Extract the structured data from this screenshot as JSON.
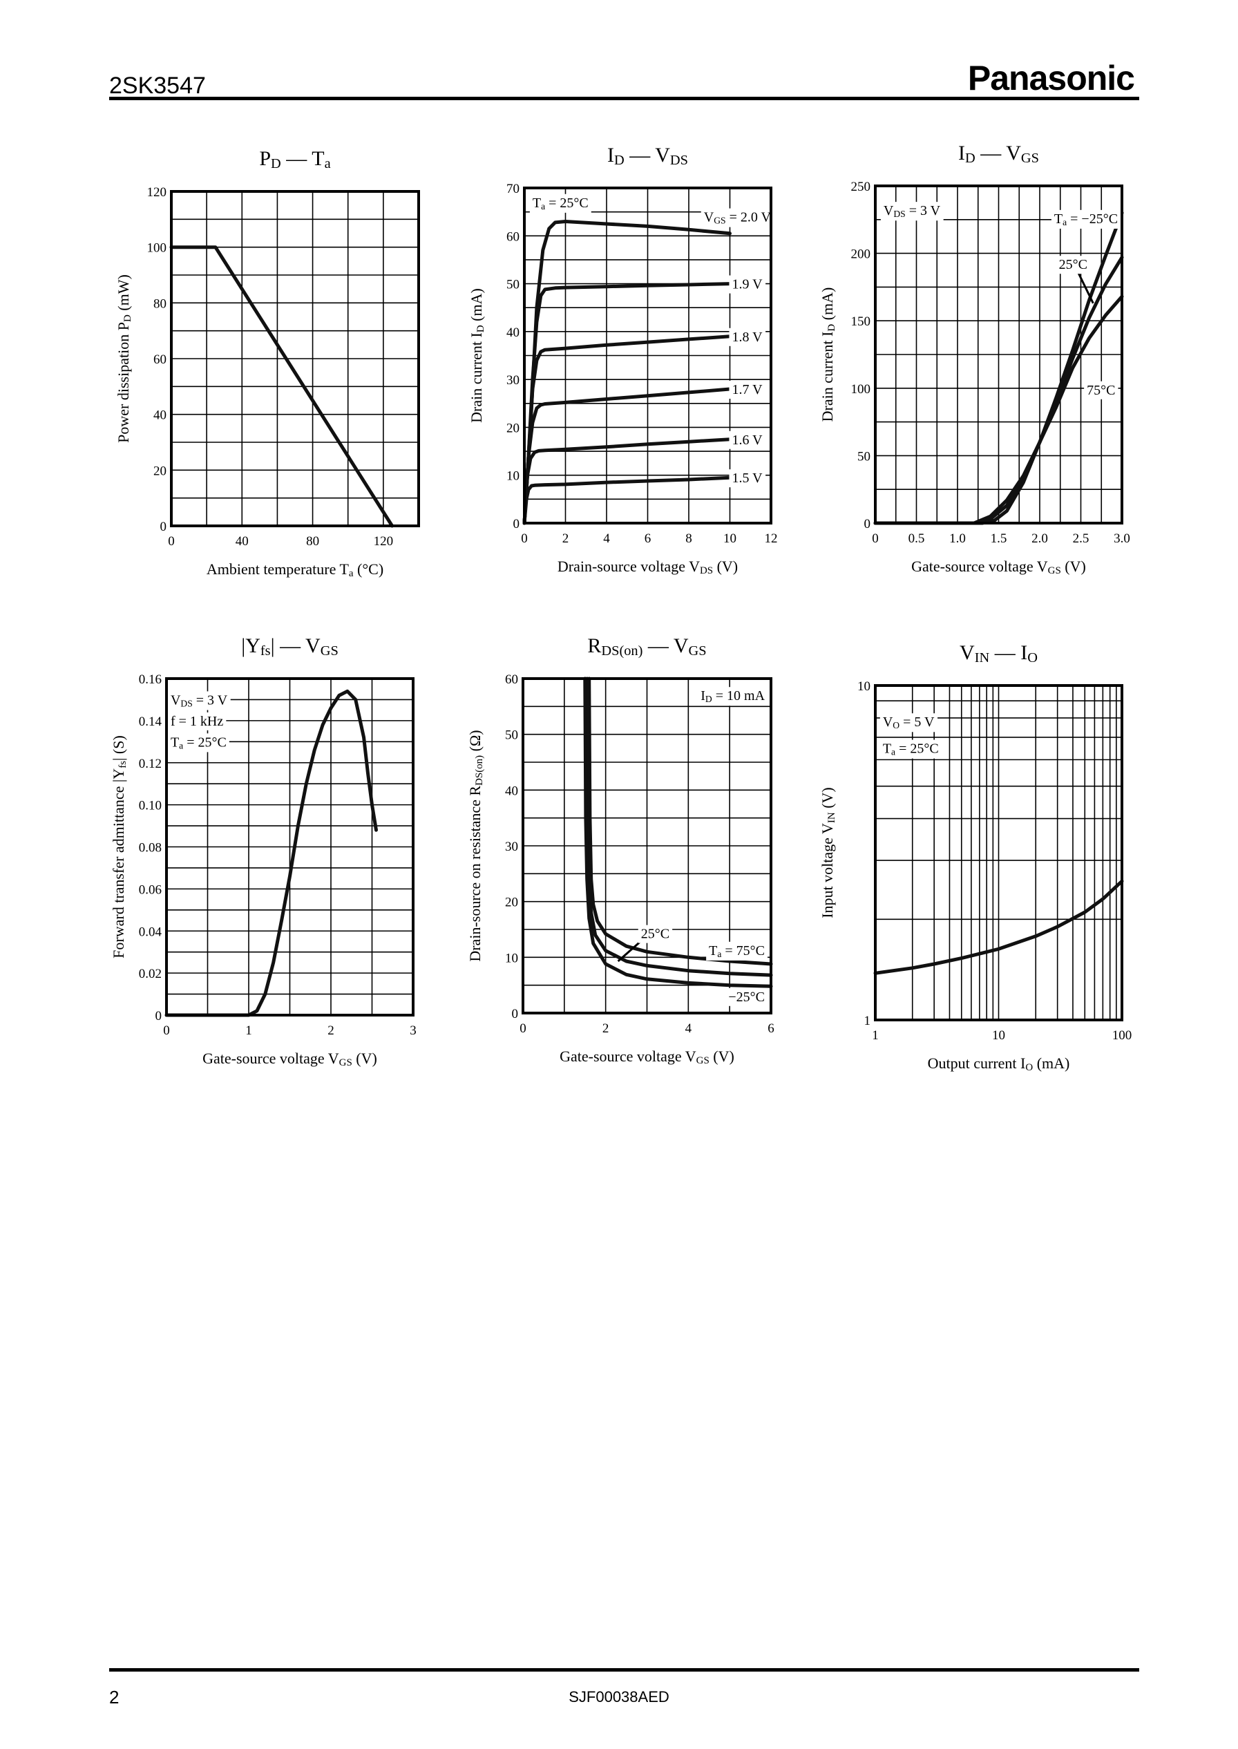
{
  "header": {
    "part_number": "2SK3547",
    "brand": "Panasonic"
  },
  "footer": {
    "page_number": "2",
    "doc_code": "SJF00038AED"
  },
  "chart_data": [
    {
      "type": "line",
      "title": [
        "P",
        "_D",
        " — T",
        "_a"
      ],
      "xlabel": [
        "Ambient temperature  T",
        "_a",
        "  (°C)"
      ],
      "ylabel": [
        "Power dissipation  P",
        "_D",
        "  (mW)"
      ],
      "xlim": [
        0,
        140
      ],
      "ylim": [
        0,
        120
      ],
      "x_scale": "linear",
      "y_scale": "linear",
      "x_grid_step": 20,
      "y_grid_step": 10,
      "grid": true,
      "x_ticks": [
        "0",
        "40",
        "80",
        "120"
      ],
      "y_ticks": [
        "0",
        "20",
        "40",
        "60",
        "80",
        "100",
        "120"
      ],
      "series": [
        {
          "x": [
            0,
            25,
            125
          ],
          "y": [
            100,
            100,
            0
          ]
        }
      ],
      "annotations": []
    },
    {
      "type": "line",
      "title": [
        "I",
        "_D",
        " — V",
        "_DS"
      ],
      "xlabel": [
        "Drain-source voltage  V",
        "_DS",
        "  (V)"
      ],
      "ylabel": [
        "Drain current  I",
        "_D",
        "  (mA)"
      ],
      "xlim": [
        0,
        12
      ],
      "ylim": [
        0,
        70
      ],
      "x_scale": "linear",
      "y_scale": "linear",
      "x_grid_step": 2,
      "y_grid_step": 5,
      "grid": true,
      "x_ticks": [
        "0",
        "2",
        "4",
        "6",
        "8",
        "10",
        "12"
      ],
      "y_ticks": [
        "0",
        "10",
        "20",
        "30",
        "40",
        "50",
        "60",
        "70"
      ],
      "series": [
        {
          "name": "V_GS = 2.0 V",
          "x": [
            0,
            0.3,
            0.6,
            0.9,
            1.2,
            1.5,
            2,
            4,
            6,
            8,
            10
          ],
          "y": [
            0,
            20,
            45,
            57,
            61.5,
            62.8,
            63,
            62.5,
            62,
            61.3,
            60.5
          ]
        },
        {
          "name": "1.9 V",
          "x": [
            0,
            0.2,
            0.4,
            0.6,
            0.8,
            1,
            1.5,
            2,
            4,
            6,
            8,
            10
          ],
          "y": [
            0,
            14,
            30,
            42,
            47.5,
            48.8,
            49.1,
            49.2,
            49.4,
            49.6,
            49.8,
            50
          ]
        },
        {
          "name": "1.8 V",
          "x": [
            0,
            0.2,
            0.4,
            0.6,
            0.8,
            1,
            2,
            4,
            6,
            8,
            10
          ],
          "y": [
            0,
            14,
            28,
            34,
            35.8,
            36.2,
            36.5,
            37.2,
            37.8,
            38.4,
            39
          ]
        },
        {
          "name": "1.7 V",
          "x": [
            0,
            0.2,
            0.4,
            0.6,
            0.8,
            1,
            2,
            4,
            6,
            8,
            10
          ],
          "y": [
            0,
            14,
            21,
            24,
            24.7,
            24.9,
            25.2,
            25.9,
            26.6,
            27.3,
            28
          ]
        },
        {
          "name": "1.6 V",
          "x": [
            0,
            0.15,
            0.3,
            0.5,
            0.7,
            1,
            2,
            4,
            6,
            8,
            10
          ],
          "y": [
            0,
            10,
            13.5,
            14.8,
            15.1,
            15.2,
            15.4,
            15.9,
            16.5,
            17,
            17.5
          ]
        },
        {
          "name": "1.5 V",
          "x": [
            0,
            0.1,
            0.2,
            0.35,
            0.5,
            1,
            2,
            4,
            6,
            8,
            10
          ],
          "y": [
            0,
            5,
            7,
            7.8,
            7.9,
            8,
            8.1,
            8.5,
            8.8,
            9.1,
            9.5
          ]
        }
      ],
      "annotations": [
        [
          "T",
          "_a",
          " = 25°C"
        ],
        [
          "V",
          "_GS",
          " = 2.0 V"
        ],
        [
          "1.9 V"
        ],
        [
          "1.8 V"
        ],
        [
          "1.7 V"
        ],
        [
          "1.6 V"
        ],
        [
          "1.5 V"
        ]
      ]
    },
    {
      "type": "line",
      "title": [
        "I",
        "_D",
        " — V",
        "_GS"
      ],
      "xlabel": [
        "Gate-source voltage  V",
        "_GS",
        "  (V)"
      ],
      "ylabel": [
        "Drain current  I",
        "_D",
        "  (mA)"
      ],
      "xlim": [
        0,
        3
      ],
      "ylim": [
        0,
        250
      ],
      "x_scale": "linear",
      "y_scale": "linear",
      "x_grid_step": 0.25,
      "y_grid_step": 25,
      "grid": true,
      "x_ticks": [
        "0",
        "0.5",
        "1.0",
        "1.5",
        "2.0",
        "2.5",
        "3.0"
      ],
      "y_ticks": [
        "0",
        "50",
        "100",
        "150",
        "200",
        "250"
      ],
      "series": [
        {
          "name": "T_a = −25°C",
          "x": [
            0,
            1.2,
            1.4,
            1.6,
            1.8,
            2.0,
            2.2,
            2.4,
            2.6,
            2.8,
            3.0
          ],
          "y": [
            0,
            0,
            5,
            17,
            35,
            60,
            93,
            128,
            165,
            198,
            230
          ]
        },
        {
          "name": "25°C",
          "x": [
            0,
            1.25,
            1.4,
            1.6,
            1.8,
            2.0,
            2.2,
            2.4,
            2.6,
            2.8,
            3.0
          ],
          "y": [
            0,
            0,
            3,
            13,
            33,
            60,
            90,
            122,
            152,
            177,
            197
          ]
        },
        {
          "name": "75°C",
          "x": [
            0,
            1.3,
            1.45,
            1.6,
            1.8,
            2.0,
            2.2,
            2.4,
            2.6,
            2.8,
            3.0
          ],
          "y": [
            0,
            0,
            2,
            9,
            30,
            60,
            86,
            115,
            137,
            154,
            168
          ]
        }
      ],
      "annotations": [
        [
          "V",
          "_DS",
          " = 3 V"
        ],
        [
          "T",
          "_a",
          " = −25°C"
        ],
        [
          "25°C"
        ],
        [
          "75°C"
        ]
      ]
    },
    {
      "type": "line",
      "title": [
        "|Y",
        "_fs",
        "| — V",
        "_GS"
      ],
      "xlabel": [
        "Gate-source voltage  V",
        "_GS",
        "  (V)"
      ],
      "ylabel": [
        "Forward transfer admittance  |Y",
        "_fs",
        "|  (S)"
      ],
      "xlim": [
        0,
        3
      ],
      "ylim": [
        0,
        0.16
      ],
      "x_scale": "linear",
      "y_scale": "linear",
      "x_grid_step": 0.5,
      "y_grid_step": 0.01,
      "grid": true,
      "x_ticks": [
        "0",
        "1",
        "2",
        "3"
      ],
      "y_ticks": [
        "0",
        "0.02",
        "0.04",
        "0.06",
        "0.08",
        "0.10",
        "0.12",
        "0.14",
        "0.16"
      ],
      "series": [
        {
          "x": [
            0,
            1.0,
            1.1,
            1.2,
            1.3,
            1.4,
            1.5,
            1.6,
            1.7,
            1.8,
            1.9,
            2.0,
            2.1,
            2.2,
            2.3,
            2.4,
            2.45,
            2.5,
            2.55
          ],
          "y": [
            0,
            0,
            0.002,
            0.01,
            0.025,
            0.045,
            0.066,
            0.09,
            0.11,
            0.126,
            0.138,
            0.146,
            0.152,
            0.154,
            0.15,
            0.132,
            0.115,
            0.1,
            0.088
          ]
        }
      ],
      "annotations": [
        [
          "V",
          "_DS",
          " = 3 V"
        ],
        [
          "f = 1 kHz"
        ],
        [
          "T",
          "_a",
          " = 25°C"
        ]
      ]
    },
    {
      "type": "line",
      "title": [
        "R",
        "_DS(on)",
        " — V",
        "_GS"
      ],
      "xlabel": [
        "Gate-source voltage  V",
        "_GS",
        "  (V)"
      ],
      "ylabel": [
        "Drain-source on resistance  R",
        "_DS(on)",
        "  (Ω)"
      ],
      "xlim": [
        0,
        6
      ],
      "ylim": [
        0,
        60
      ],
      "x_scale": "linear",
      "y_scale": "linear",
      "x_grid_step": 1,
      "y_grid_step": 5,
      "grid": true,
      "x_ticks": [
        "0",
        "2",
        "4",
        "6"
      ],
      "y_ticks": [
        "0",
        "10",
        "20",
        "30",
        "40",
        "50",
        "60"
      ],
      "series": [
        {
          "name": "T_a = 75°C",
          "x": [
            1.6,
            1.62,
            1.65,
            1.7,
            1.8,
            2.0,
            2.5,
            3,
            4,
            5,
            6
          ],
          "y": [
            60,
            35,
            24,
            19.5,
            16.5,
            14.2,
            12,
            11,
            10,
            9.3,
            8.8
          ]
        },
        {
          "name": "25°C",
          "x": [
            1.55,
            1.57,
            1.6,
            1.65,
            1.75,
            2.0,
            2.5,
            3,
            4,
            5,
            6
          ],
          "y": [
            60,
            35,
            23,
            18,
            14,
            11.2,
            9.3,
            8.5,
            7.6,
            7.1,
            6.8
          ]
        },
        {
          "name": "−25°C",
          "x": [
            1.5,
            1.52,
            1.55,
            1.6,
            1.7,
            2.0,
            2.5,
            3,
            4,
            5,
            6
          ],
          "y": [
            60,
            35,
            24,
            17,
            12.5,
            8.8,
            6.9,
            6.1,
            5.4,
            5.0,
            4.8
          ]
        }
      ],
      "annotations": [
        [
          "I",
          "_D",
          " = 10 mA"
        ],
        [
          "25°C"
        ],
        [
          "T",
          "_a",
          " = 75°C"
        ],
        [
          "−25°C"
        ]
      ]
    },
    {
      "type": "line",
      "title": [
        "V",
        "_IN",
        " — I",
        "_O"
      ],
      "xlabel": [
        "Output current  I",
        "_O",
        "  (mA)"
      ],
      "ylabel": [
        "Input voltage  V",
        "_IN",
        "  (V)"
      ],
      "xlim": [
        1,
        100
      ],
      "ylim": [
        1,
        10
      ],
      "x_scale": "log",
      "y_scale": "log",
      "grid": true,
      "x_ticks": [
        "1",
        "10",
        "100"
      ],
      "y_ticks": [
        "1",
        "10"
      ],
      "series": [
        {
          "x": [
            1,
            2,
            3,
            5,
            10,
            20,
            30,
            50,
            70,
            100
          ],
          "y": [
            1.38,
            1.43,
            1.47,
            1.53,
            1.63,
            1.78,
            1.9,
            2.1,
            2.3,
            2.6
          ]
        }
      ],
      "annotations": [
        [
          "V",
          "_O",
          " = 5 V"
        ],
        [
          "T",
          "_a",
          " = 25°C"
        ]
      ]
    }
  ]
}
